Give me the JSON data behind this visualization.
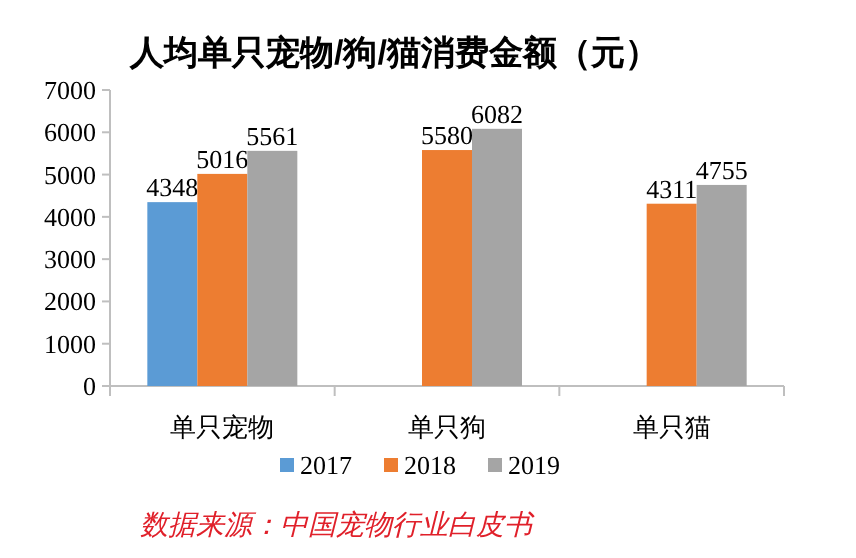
{
  "chart_data": {
    "type": "bar",
    "title": "人均单只宠物/狗/猫消费金额（元）",
    "categories": [
      "单只宠物",
      "单只狗",
      "单只猫"
    ],
    "series": [
      {
        "name": "2017",
        "color": "#5b9bd5",
        "values": [
          4348,
          null,
          null
        ]
      },
      {
        "name": "2018",
        "color": "#ed7d31",
        "values": [
          5016,
          5580,
          4311
        ]
      },
      {
        "name": "2019",
        "color": "#a5a5a5",
        "values": [
          5561,
          6082,
          4755
        ]
      }
    ],
    "ylim": [
      0,
      7000
    ],
    "yticks": [
      0,
      1000,
      2000,
      3000,
      4000,
      5000,
      6000,
      7000
    ],
    "grid": false,
    "legend": "bottom",
    "data_labels": true,
    "annotations": [
      "数据来源：中国宠物行业白皮书"
    ]
  }
}
